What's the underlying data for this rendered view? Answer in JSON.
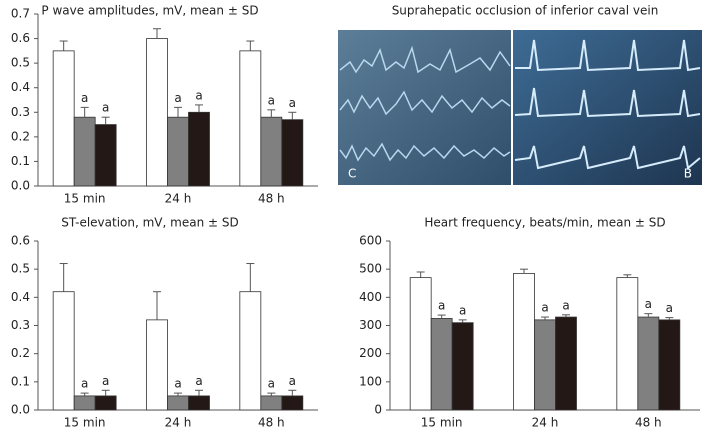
{
  "chart_data": [
    {
      "type": "bar",
      "title": "P wave amplitudes, mV, mean ± SD",
      "categories": [
        "15 min",
        "24 h",
        "48 h"
      ],
      "series": [
        {
          "color": "#ffffff",
          "values": [
            0.55,
            0.6,
            0.55
          ],
          "errors": [
            0.04,
            0.04,
            0.04
          ]
        },
        {
          "color": "#808080",
          "values": [
            0.28,
            0.28,
            0.28
          ],
          "errors": [
            0.04,
            0.04,
            0.03
          ],
          "annotation": "a"
        },
        {
          "color": "#231815",
          "values": [
            0.25,
            0.3,
            0.27
          ],
          "errors": [
            0.03,
            0.03,
            0.03
          ],
          "annotation": "a"
        }
      ],
      "ylim": [
        0,
        0.7
      ],
      "yticks": [
        {
          "value": 0,
          "label": "0.0"
        },
        0.1,
        0.2,
        0.3,
        0.4,
        0.5,
        0.6,
        0.7
      ]
    },
    {
      "type": "bar",
      "title": "ST-elevation, mV, mean ± SD",
      "categories": [
        "15 min",
        "24 h",
        "48 h"
      ],
      "series": [
        {
          "color": "#ffffff",
          "values": [
            0.42,
            0.32,
            0.42
          ],
          "errors": [
            0.1,
            0.1,
            0.1
          ]
        },
        {
          "color": "#808080",
          "values": [
            0.05,
            0.05,
            0.05
          ],
          "errors": [
            0.01,
            0.01,
            0.01
          ],
          "annotation": "a"
        },
        {
          "color": "#231815",
          "values": [
            0.05,
            0.05,
            0.05
          ],
          "errors": [
            0.02,
            0.02,
            0.02
          ],
          "annotation": "a"
        }
      ],
      "ylim": [
        0,
        0.6
      ],
      "yticks": [
        {
          "value": 0,
          "label": "0.0"
        },
        0.1,
        0.2,
        0.3,
        0.4,
        0.5,
        0.6
      ]
    },
    {
      "type": "bar",
      "title": "Heart frequency, beats/min, mean ± SD",
      "categories": [
        "15 min",
        "24 h",
        "48 h"
      ],
      "series": [
        {
          "color": "#ffffff",
          "values": [
            470,
            485,
            470
          ],
          "errors": [
            20,
            15,
            10
          ]
        },
        {
          "color": "#808080",
          "values": [
            325,
            320,
            330
          ],
          "errors": [
            12,
            10,
            12
          ],
          "annotation": "a"
        },
        {
          "color": "#231815",
          "values": [
            310,
            330,
            320
          ],
          "errors": [
            10,
            8,
            8
          ],
          "annotation": "a"
        }
      ],
      "ylim": [
        0,
        600
      ],
      "yticks": [
        0,
        100,
        200,
        300,
        400,
        500,
        600
      ]
    }
  ],
  "ecg_panel": {
    "title": "Suprahepatic occlusion of inferior caval vein",
    "left_label": "C",
    "right_label": "B"
  }
}
